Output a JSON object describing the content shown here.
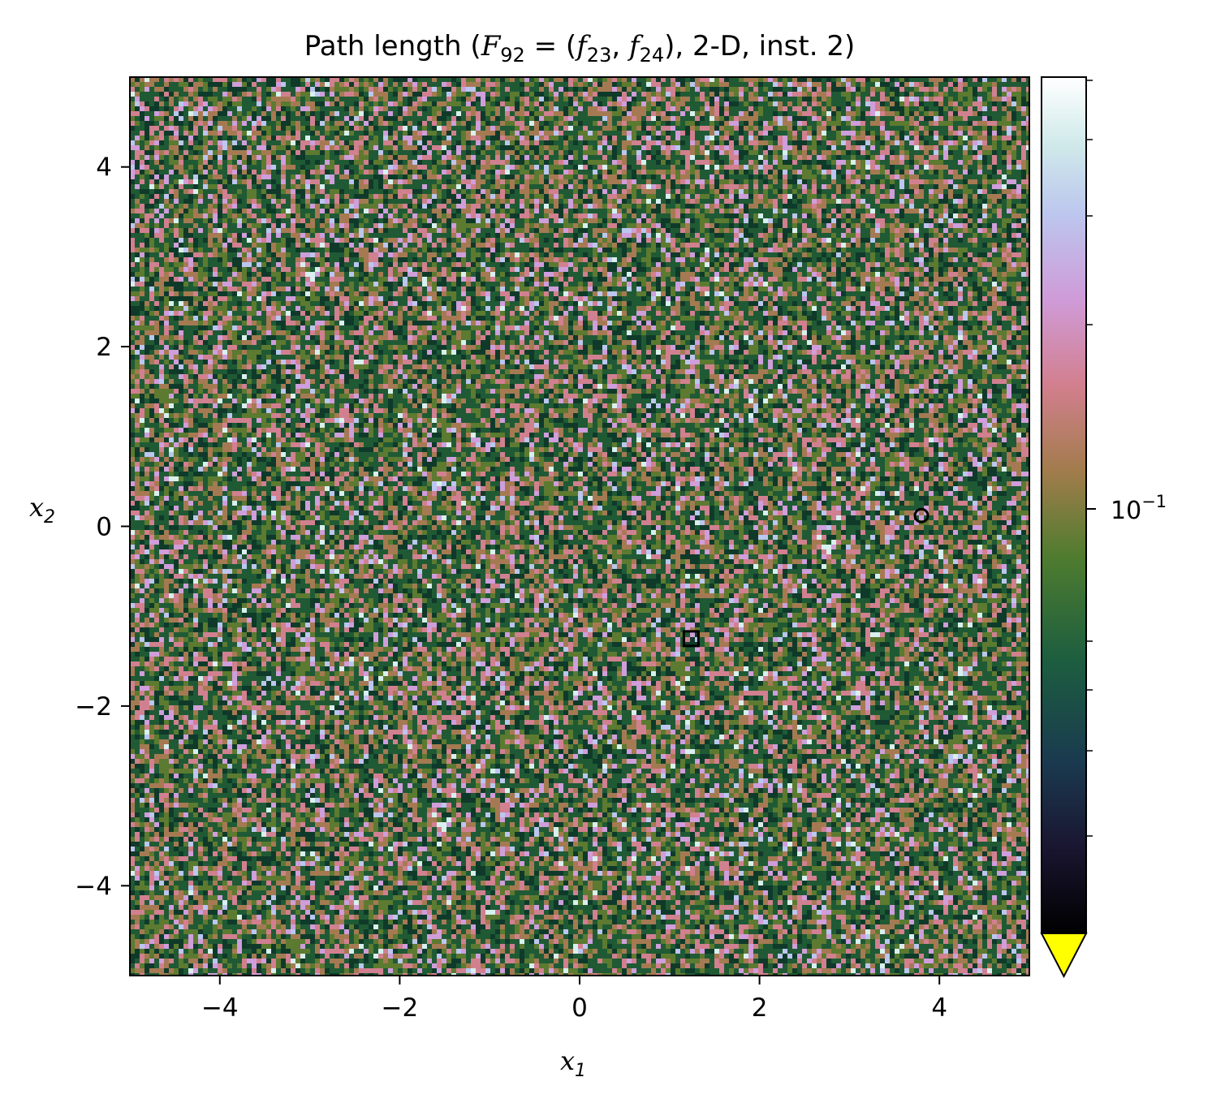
{
  "chart_data": {
    "type": "heatmap",
    "title_prefix": "Path length (",
    "title_F": "F",
    "title_F_sub": "92",
    "title_eq": " = (",
    "title_f": "f",
    "title_f1_sub": "23",
    "title_comma": ", ",
    "title_f2_sub": "24",
    "title_suffix": "), 2-D, inst. 2)",
    "xlabel_var": "x",
    "xlabel_sub": "1",
    "ylabel_var": "x",
    "ylabel_sub": "2",
    "xlim": [
      -5,
      5
    ],
    "ylim": [
      -5,
      5
    ],
    "x_ticks": [
      -4,
      -2,
      0,
      2,
      4
    ],
    "y_ticks": [
      -4,
      -2,
      0,
      2,
      4
    ],
    "x_tick_labels": [
      "−4",
      "−2",
      "0",
      "2",
      "4"
    ],
    "y_tick_labels": [
      "−4",
      "−2",
      "0",
      "2",
      "4"
    ],
    "colorbar": {
      "scale": "log",
      "colormap": "cubehelix",
      "tick_base": "10",
      "tick_exponent": "−1",
      "under_color": "#ffff00",
      "extend": "min"
    },
    "markers": [
      {
        "shape": "circle",
        "x": 3.8,
        "y": 0.12
      },
      {
        "shape": "square",
        "x": 1.24,
        "y": -1.25
      }
    ],
    "grid": false
  }
}
